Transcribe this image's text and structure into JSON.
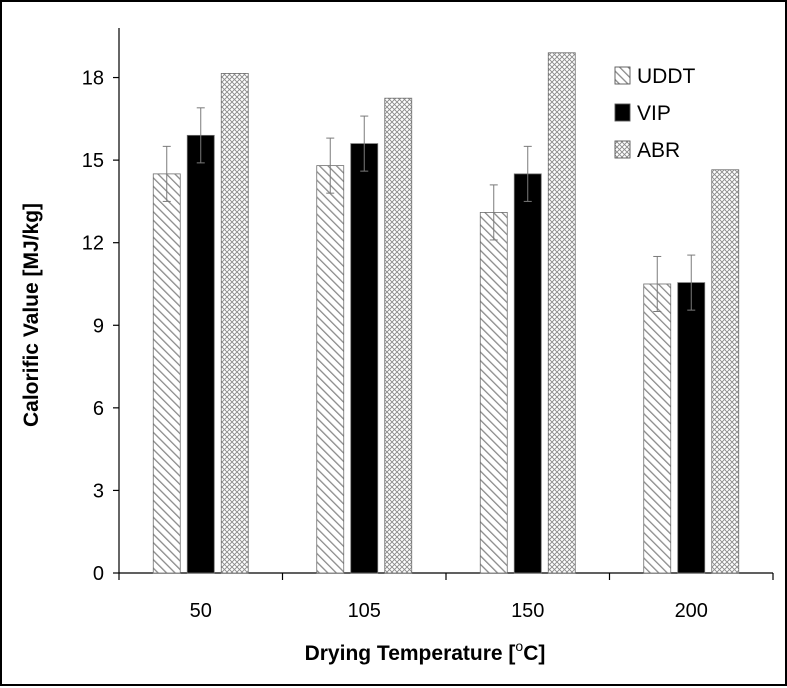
{
  "chart_data": {
    "type": "bar",
    "title": "",
    "xlabel_main": "Drying Temperature [",
    "xlabel_sup": "o",
    "xlabel_tail": "C]",
    "ylabel": "Calorific Value [MJ/kg]",
    "categories": [
      "50",
      "105",
      "150",
      "200"
    ],
    "ylim": [
      0,
      19.8
    ],
    "yticks": [
      "0",
      "3",
      "6",
      "9",
      "12",
      "15",
      "18"
    ],
    "ytick_values": [
      0,
      3,
      6,
      9,
      12,
      15,
      18
    ],
    "grid": false,
    "legend_position": "top-right",
    "series": [
      {
        "name": "UDDT",
        "pattern": "diagonal-hatch",
        "color": "#808080",
        "values": [
          14.5,
          14.8,
          13.1,
          10.5
        ],
        "error": [
          1.0,
          1.0,
          1.0,
          1.0
        ]
      },
      {
        "name": "VIP",
        "pattern": "solid",
        "color": "#000000",
        "values": [
          15.9,
          15.6,
          14.5,
          10.55
        ],
        "error": [
          1.0,
          1.0,
          1.0,
          1.0
        ]
      },
      {
        "name": "ABR",
        "pattern": "crosshatch",
        "color": "#808080",
        "values": [
          18.15,
          17.25,
          18.9,
          14.65
        ],
        "error": [
          0.03,
          0.03,
          0.03,
          0.03
        ]
      }
    ]
  }
}
